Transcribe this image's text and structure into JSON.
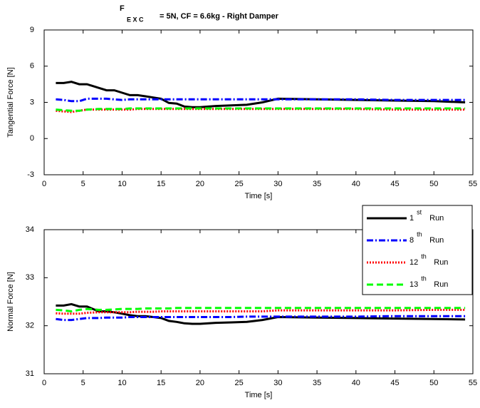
{
  "chart_data": [
    {
      "type": "line",
      "title": {
        "main": "F",
        "sub": "E X C",
        "rest": "= 5N, CF = 6.6kg - Right Damper"
      },
      "xlabel": "Time [s]",
      "ylabel": "Tangential Force [N]",
      "x": [
        1.5,
        2.5,
        3.5,
        4.5,
        5.5,
        7,
        8,
        9,
        10,
        11,
        12,
        13,
        14,
        15,
        16,
        17,
        18,
        19,
        20,
        22,
        24,
        26,
        28,
        30,
        35,
        40,
        45,
        50,
        54
      ],
      "xlim": [
        0,
        55
      ],
      "xticks": [
        0,
        5,
        10,
        15,
        20,
        25,
        30,
        35,
        40,
        45,
        50,
        55
      ],
      "ylim": [
        -3,
        9
      ],
      "yticks": [
        -3,
        0,
        3,
        6,
        9
      ],
      "series": [
        {
          "color": "#000000",
          "dash": "solid",
          "values": [
            4.6,
            4.6,
            4.7,
            4.5,
            4.5,
            4.2,
            4.0,
            4.0,
            3.8,
            3.6,
            3.6,
            3.5,
            3.4,
            3.3,
            2.95,
            2.9,
            2.65,
            2.6,
            2.6,
            2.7,
            2.75,
            2.8,
            3.0,
            3.3,
            3.25,
            3.2,
            3.15,
            3.1,
            3.0
          ]
        },
        {
          "color": "#0000ff",
          "dash": "dashdot",
          "values": [
            3.25,
            3.2,
            3.1,
            3.1,
            3.3,
            3.3,
            3.3,
            3.25,
            3.2,
            3.25,
            3.25,
            3.25,
            3.25,
            3.25,
            3.25,
            3.25,
            3.25,
            3.25,
            3.25,
            3.25,
            3.25,
            3.25,
            3.25,
            3.25,
            3.25,
            3.25,
            3.2,
            3.2,
            3.2
          ]
        },
        {
          "color": "#ff0000",
          "dash": "dotted",
          "values": [
            2.3,
            2.25,
            2.2,
            2.3,
            2.4,
            2.4,
            2.4,
            2.4,
            2.4,
            2.4,
            2.45,
            2.45,
            2.45,
            2.45,
            2.45,
            2.45,
            2.45,
            2.45,
            2.45,
            2.45,
            2.45,
            2.45,
            2.45,
            2.45,
            2.45,
            2.45,
            2.4,
            2.4,
            2.4
          ]
        },
        {
          "color": "#00ff00",
          "dash": "dashed",
          "values": [
            2.4,
            2.35,
            2.3,
            2.3,
            2.4,
            2.45,
            2.45,
            2.45,
            2.45,
            2.5,
            2.5,
            2.5,
            2.5,
            2.5,
            2.5,
            2.5,
            2.5,
            2.5,
            2.5,
            2.5,
            2.5,
            2.5,
            2.5,
            2.5,
            2.5,
            2.5,
            2.5,
            2.5,
            2.5
          ]
        }
      ]
    },
    {
      "type": "line",
      "xlabel": "Time [s]",
      "ylabel": "Normal Force [N]",
      "x": [
        1.5,
        2.5,
        3.5,
        4.5,
        5.5,
        7,
        8,
        9,
        10,
        11,
        12,
        13,
        14,
        15,
        16,
        17,
        18,
        19,
        20,
        22,
        24,
        26,
        28,
        30,
        35,
        40,
        45,
        50,
        54
      ],
      "xlim": [
        0,
        55
      ],
      "xticks": [
        0,
        5,
        10,
        15,
        20,
        25,
        30,
        35,
        40,
        45,
        50,
        55
      ],
      "ylim": [
        31,
        34
      ],
      "yticks": [
        31,
        32,
        33,
        34
      ],
      "legend": "upper right",
      "series": [
        {
          "name": "1",
          "sup": "st",
          "suffix": "Run",
          "color": "#000000",
          "dash": "solid",
          "values": [
            32.42,
            32.42,
            32.45,
            32.4,
            32.4,
            32.3,
            32.3,
            32.28,
            32.25,
            32.22,
            32.2,
            32.2,
            32.18,
            32.16,
            32.1,
            32.08,
            32.05,
            32.04,
            32.04,
            32.06,
            32.07,
            32.08,
            32.12,
            32.18,
            32.17,
            32.16,
            32.15,
            32.14,
            32.13
          ]
        },
        {
          "name": "8",
          "sup": "th",
          "suffix": "Run",
          "color": "#0000ff",
          "dash": "dashdot",
          "values": [
            32.14,
            32.12,
            32.12,
            32.14,
            32.16,
            32.16,
            32.17,
            32.17,
            32.17,
            32.18,
            32.18,
            32.18,
            32.18,
            32.18,
            32.18,
            32.18,
            32.18,
            32.18,
            32.18,
            32.18,
            32.18,
            32.19,
            32.19,
            32.19,
            32.19,
            32.19,
            32.2,
            32.2,
            32.2
          ]
        },
        {
          "name": "12",
          "sup": "th",
          "suffix": "Run",
          "color": "#ff0000",
          "dash": "dotted",
          "values": [
            32.26,
            32.25,
            32.25,
            32.25,
            32.27,
            32.28,
            32.28,
            32.28,
            32.28,
            32.28,
            32.29,
            32.29,
            32.29,
            32.3,
            32.3,
            32.3,
            32.3,
            32.3,
            32.3,
            32.3,
            32.3,
            32.3,
            32.3,
            32.32,
            32.32,
            32.32,
            32.32,
            32.33,
            32.33
          ]
        },
        {
          "name": "13",
          "sup": "th",
          "suffix": "Run",
          "color": "#00ff00",
          "dash": "dashed",
          "values": [
            32.33,
            32.32,
            32.3,
            32.33,
            32.35,
            32.33,
            32.33,
            32.34,
            32.35,
            32.35,
            32.35,
            32.36,
            32.36,
            32.36,
            32.36,
            32.37,
            32.37,
            32.37,
            32.37,
            32.37,
            32.37,
            32.37,
            32.37,
            32.37,
            32.37,
            32.37,
            32.37,
            32.37,
            32.37
          ]
        }
      ]
    }
  ]
}
